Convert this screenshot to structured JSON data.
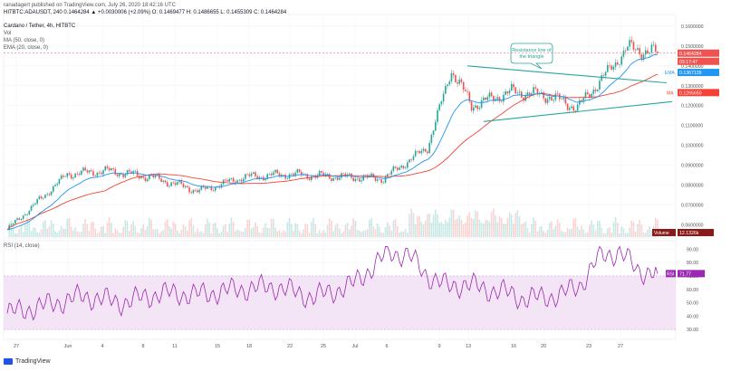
{
  "header": {
    "published_line": "ranadagert published on TradingView.com, July 26, 2020 18:42:16 UTC",
    "symbol_line": "HITBTC:ADAUSDT, 240  0.1464284  ▲ +0.0030006 (+2.09%)  O: 0.1469477  H: 0.1486655  L: 0.1455309  C: 0.1464284",
    "title_line": "Cardano / Tether, 4h, HITBTC",
    "vol_label": "Vol",
    "ma_label": "MA (50, close, 0)",
    "ema_label": "EMA (20, close, 0)",
    "rsi_label": "RSI (14, close)"
  },
  "annotation": {
    "text_line1": "Resistance line of",
    "text_line2": "the triangle"
  },
  "badges": {
    "price": "0.1464284",
    "countdown": "03:17:47",
    "ema": "0.1367139",
    "ma": "0.1265650",
    "volume_label": "Volume",
    "volume": "12.1326k",
    "rsi_label": "RSI",
    "rsi": "71.77"
  },
  "colors": {
    "up": "#26a69a",
    "down": "#ef5350",
    "ema": "#2196f3",
    "ma": "#f44336",
    "rsi": "#9c27b0",
    "trendline": "#26a69a",
    "rsi_band": "#f3e5f5"
  },
  "footer": {
    "brand": "TradingView"
  },
  "chart_data": [
    {
      "type": "candlestick",
      "title": "Cardano / Tether, 4h, HITBTC",
      "y_ticks": [
        "0.1600000",
        "0.1500000",
        "0.1400000",
        "0.1300000",
        "0.1200000",
        "0.1100000",
        "0.1000000",
        "0.0900000",
        "0.0800000",
        "0.0700000",
        "0.0600000"
      ],
      "ylim": [
        0.0538,
        0.165
      ],
      "x_ticks": [
        "27",
        "Jun",
        "4",
        "8",
        "11",
        "15",
        "18",
        "22",
        "25",
        "Jul",
        "6",
        "9",
        "13",
        "16",
        "20",
        "23",
        "27"
      ],
      "anchors": {
        "x_label_index": [
          0,
          2,
          4,
          6,
          8,
          10,
          12,
          14,
          16,
          18,
          20,
          21,
          23,
          24,
          26,
          28,
          30
        ],
        "close": [
          0.0575,
          0.0705,
          0.0855,
          0.0872,
          0.084,
          0.077,
          0.084,
          0.0855,
          0.0845,
          0.0832,
          0.099,
          0.138,
          0.12,
          0.127,
          0.125,
          0.119,
          0.149
        ],
        "index_start": [
          0,
          14,
          30,
          50,
          72,
          96,
          118,
          140,
          160,
          188,
          210,
          222,
          232,
          252,
          270,
          285,
          310
        ],
        "index_end": 325
      },
      "series": [
        {
          "name": "MA (50, close, 0)",
          "last_value": 0.126565
        },
        {
          "name": "EMA (20, close, 0)",
          "last_value": 0.1367139
        }
      ],
      "last_close": 0.1464284,
      "volume_last": "12.1326k",
      "annotations": [
        "Resistance line of the triangle"
      ]
    },
    {
      "type": "line",
      "title": "RSI (14, close)",
      "y_ticks": [
        "90.00",
        "80.00",
        "70.00",
        "60.00",
        "50.00",
        "40.00",
        "30.00"
      ],
      "ylim": [
        24,
        95
      ],
      "band": [
        30,
        70
      ],
      "rsi_points": [
        [
          0,
          42
        ],
        [
          2,
          48
        ],
        [
          4,
          55
        ],
        [
          6,
          50
        ],
        [
          8,
          57
        ],
        [
          10,
          56
        ],
        [
          12,
          60
        ],
        [
          14,
          62
        ],
        [
          16,
          54
        ],
        [
          18,
          63
        ],
        [
          20,
          88
        ],
        [
          21,
          85
        ],
        [
          22,
          70
        ],
        [
          23,
          62
        ],
        [
          24,
          64
        ],
        [
          25,
          60
        ],
        [
          26,
          58
        ],
        [
          27,
          53
        ],
        [
          28,
          54
        ],
        [
          29,
          56
        ],
        [
          30,
          64
        ],
        [
          31,
          85
        ],
        [
          32,
          88
        ],
        [
          33,
          74
        ],
        [
          34,
          72
        ]
      ],
      "last_value": 71.77
    }
  ]
}
